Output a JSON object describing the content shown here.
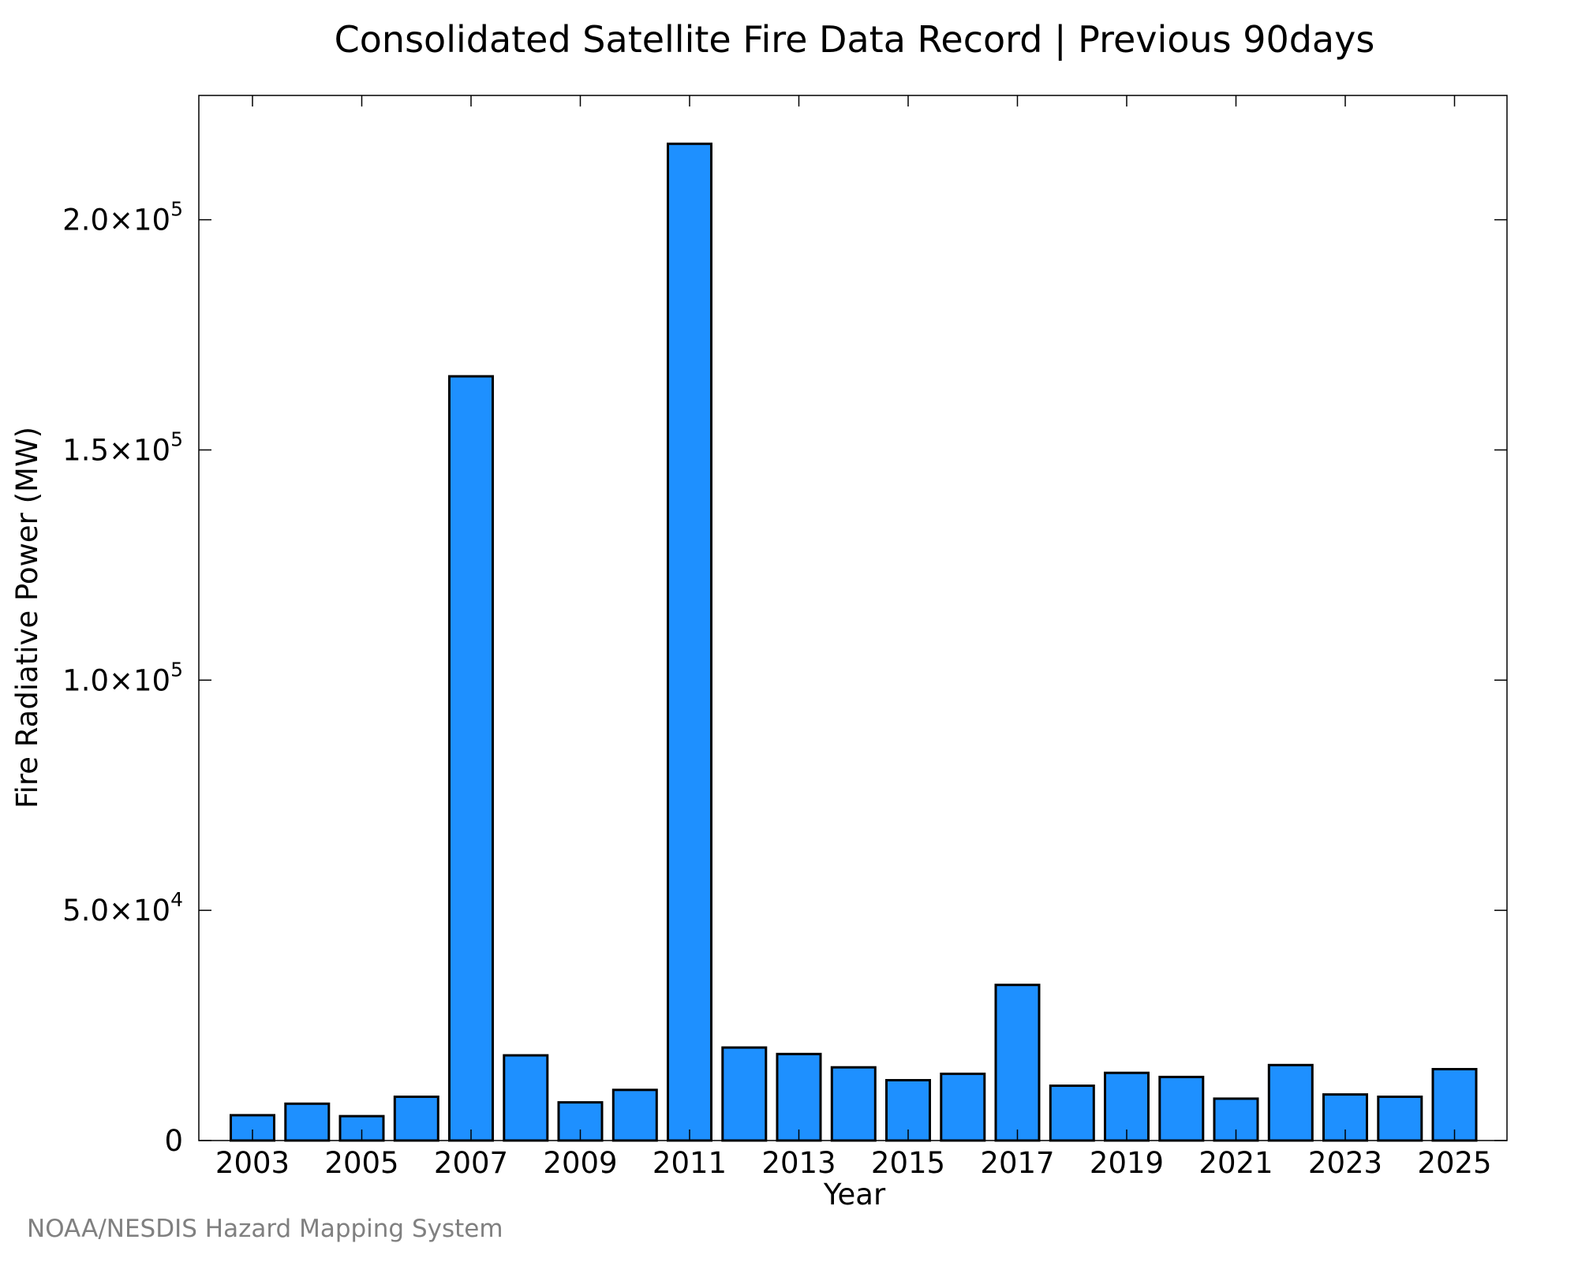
{
  "chart_data": {
    "type": "bar",
    "title": "Consolidated Satellite Fire Data Record | Previous 90days",
    "xlabel": "Year",
    "ylabel": "Fire Radiative Power (MW)",
    "categories": [
      "2003",
      "2004",
      "2005",
      "2006",
      "2007",
      "2008",
      "2009",
      "2010",
      "2011",
      "2012",
      "2013",
      "2014",
      "2015",
      "2016",
      "2017",
      "2018",
      "2019",
      "2020",
      "2021",
      "2022",
      "2023",
      "2024",
      "2025"
    ],
    "values": [
      5500,
      8000,
      5300,
      9500,
      166000,
      18500,
      8300,
      11000,
      216500,
      20200,
      18800,
      15900,
      13100,
      14500,
      33800,
      11900,
      14700,
      13800,
      9100,
      16400,
      10000,
      9500,
      15500
    ],
    "x_tick_labels": [
      "2003",
      "2005",
      "2007",
      "2009",
      "2011",
      "2013",
      "2015",
      "2017",
      "2019",
      "2021",
      "2023",
      "2025"
    ],
    "ylim": [
      0,
      227000
    ],
    "y_ticks": [
      {
        "value": 0,
        "mantissa": "0",
        "exponent": ""
      },
      {
        "value": 50000,
        "mantissa": "5.0×10",
        "exponent": "4"
      },
      {
        "value": 100000,
        "mantissa": "1.0×10",
        "exponent": "5"
      },
      {
        "value": 150000,
        "mantissa": "1.5×10",
        "exponent": "5"
      },
      {
        "value": 200000,
        "mantissa": "2.0×10",
        "exponent": "5"
      }
    ],
    "grid": false,
    "legend": "none",
    "bar_color": "#1E90FF",
    "bar_edge_color": "#000000"
  },
  "credit": "NOAA/NESDIS Hazard Mapping System"
}
